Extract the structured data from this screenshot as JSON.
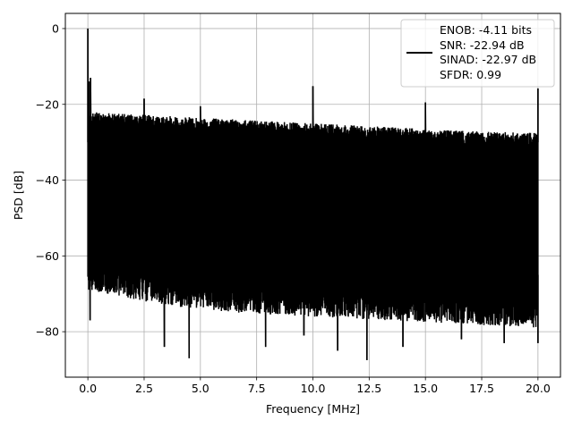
{
  "chart_data": {
    "type": "line",
    "title": "",
    "xlabel": "Frequency [MHz]",
    "ylabel": "PSD [dB]",
    "xlim": [
      -1.0,
      21.0
    ],
    "ylim": [
      -92.0,
      4.0
    ],
    "xticks": [
      0.0,
      2.5,
      5.0,
      7.5,
      10.0,
      12.5,
      15.0,
      17.5,
      20.0
    ],
    "xtick_labels": [
      "0.0",
      "2.5",
      "5.0",
      "7.5",
      "10.0",
      "12.5",
      "15.0",
      "17.5",
      "20.0"
    ],
    "yticks": [
      0,
      -20,
      -40,
      -60,
      -80
    ],
    "ytick_labels": [
      "0",
      "−20",
      "−40",
      "−60",
      "−80"
    ],
    "grid": true,
    "legend_position": "top-right",
    "legend_lines": [
      "ENOB: -4.11 bits",
      "SNR: -22.94 dB",
      "SINAD: -22.97 dB",
      "SFDR: 0.99"
    ],
    "series": [
      {
        "color": "#000000",
        "x_range": [
          0.0,
          20.0
        ],
        "envelope_top_db": [
          -22,
          -23,
          -24,
          -25,
          -26,
          -27,
          -27.5
        ],
        "envelope_bottom_db": [
          -68,
          -72,
          -74,
          -75,
          -76,
          -77,
          -78
        ],
        "spikes": [
          {
            "x": 0.0,
            "y": 0.0
          },
          {
            "x": 0.05,
            "y": -14
          },
          {
            "x": 0.12,
            "y": -13
          },
          {
            "x": 2.5,
            "y": -18.5
          },
          {
            "x": 5.0,
            "y": -20.5
          },
          {
            "x": 10.0,
            "y": -15.2
          },
          {
            "x": 15.0,
            "y": -19.5
          },
          {
            "x": 20.0,
            "y": -15.8
          }
        ],
        "dips": [
          {
            "x": 0.1,
            "y": -77
          },
          {
            "x": 3.4,
            "y": -84
          },
          {
            "x": 4.5,
            "y": -87
          },
          {
            "x": 7.9,
            "y": -84
          },
          {
            "x": 9.6,
            "y": -81
          },
          {
            "x": 11.1,
            "y": -85
          },
          {
            "x": 12.4,
            "y": -87.5
          },
          {
            "x": 14.0,
            "y": -84
          },
          {
            "x": 16.6,
            "y": -82
          },
          {
            "x": 18.5,
            "y": -83
          },
          {
            "x": 20.0,
            "y": -83
          }
        ]
      }
    ]
  }
}
